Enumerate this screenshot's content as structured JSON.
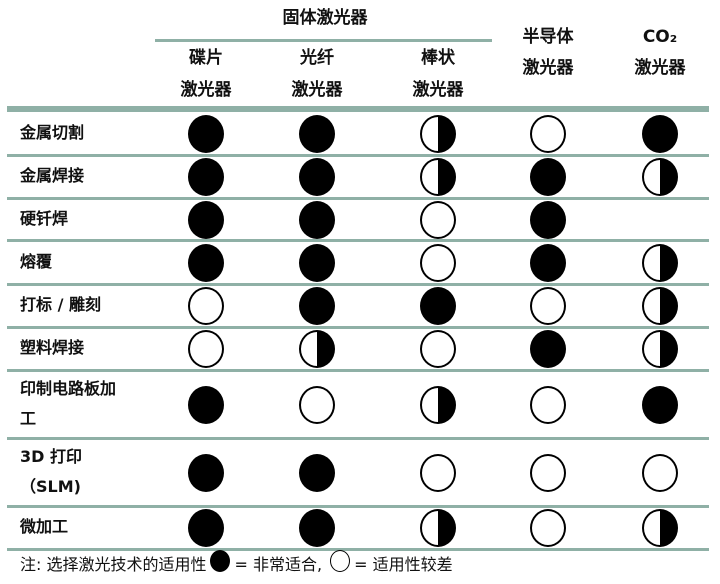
{
  "colors": {
    "rule": "#8fb0a6",
    "filled": "#000000",
    "empty": "#ffffff"
  },
  "header": {
    "group_solid": "固体激光器",
    "columns": [
      {
        "line1": "碟片",
        "line2": "激光器"
      },
      {
        "line1": "光纤",
        "line2": "激光器"
      },
      {
        "line1": "棒状",
        "line2": "激光器"
      },
      {
        "line1": "半导体",
        "line2": "激光器"
      },
      {
        "line1": "CO₂",
        "line2": "激光器"
      }
    ]
  },
  "rating_legend": {
    "full": "very-suitable",
    "half": "partially-suitable",
    "empty": "poorly-suitable",
    "none": "no-entry"
  },
  "rows": [
    {
      "label": "金属切割",
      "ratings": [
        "full",
        "full",
        "half",
        "empty",
        "full"
      ]
    },
    {
      "label": "金属焊接",
      "ratings": [
        "full",
        "full",
        "half",
        "full",
        "half"
      ]
    },
    {
      "label": "硬钎焊",
      "ratings": [
        "full",
        "full",
        "empty",
        "full",
        "none"
      ]
    },
    {
      "label": "熔覆",
      "ratings": [
        "full",
        "full",
        "empty",
        "full",
        "half"
      ]
    },
    {
      "label": "打标 / 雕刻",
      "ratings": [
        "empty",
        "full",
        "full",
        "empty",
        "half"
      ]
    },
    {
      "label": "塑料焊接",
      "ratings": [
        "empty",
        "half",
        "empty",
        "full",
        "half"
      ]
    },
    {
      "label": "印制电路板加\n工",
      "ratings": [
        "full",
        "empty",
        "half",
        "empty",
        "full"
      ]
    },
    {
      "label": "3D 打印\n（SLM)",
      "ratings": [
        "full",
        "full",
        "empty",
        "empty",
        "empty"
      ]
    },
    {
      "label": "微加工",
      "ratings": [
        "full",
        "full",
        "half",
        "empty",
        "half"
      ]
    }
  ],
  "note": {
    "prefix": "注: 选择激光技术的适用性",
    "full_text": " = 非常适合,",
    "empty_text": " = 适用性较差"
  }
}
